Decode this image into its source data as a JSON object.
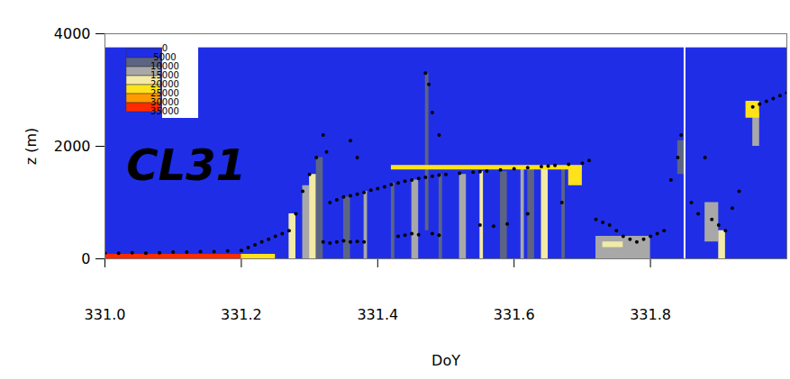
{
  "chart_data": {
    "type": "heatmap",
    "title": "CL31",
    "x_label": "DoY",
    "y_label": "z (m)",
    "xlim": [
      331.0,
      332.0
    ],
    "ylim": [
      0,
      4000
    ],
    "xticks": [
      {
        "value": 331,
        "label": "331.0"
      },
      331.2,
      331.4,
      331.6,
      331.8
    ],
    "yticks": [
      0,
      2000,
      4000
    ],
    "colorbar": {
      "ticks": [
        0,
        5000,
        10000,
        15000,
        20000,
        25000,
        30000,
        35000
      ],
      "colors": [
        "#1f2ee6",
        "#5c6484",
        "#a8a8a8",
        "#f2eaa6",
        "#ffe21a",
        "#ff9a00",
        "#ff2a00"
      ]
    },
    "cells": [
      {
        "t1": 331.0,
        "t2": 332.0,
        "z1": 0,
        "z2": 3750,
        "value": 0
      },
      {
        "t1": 331.0,
        "t2": 331.2,
        "z1": 0,
        "z2": 80,
        "value": 32000
      },
      {
        "t1": 331.2,
        "t2": 331.25,
        "z1": 0,
        "z2": 80,
        "value": 22000
      },
      {
        "t1": 331.27,
        "t2": 331.28,
        "z1": 0,
        "z2": 800,
        "value": 17000
      },
      {
        "t1": 331.29,
        "t2": 331.3,
        "z1": 0,
        "z2": 1300,
        "value": 12000
      },
      {
        "t1": 331.3,
        "t2": 331.31,
        "z1": 0,
        "z2": 1500,
        "value": 17000
      },
      {
        "t1": 331.31,
        "t2": 331.32,
        "z1": 0,
        "z2": 1800,
        "value": 8000
      },
      {
        "t1": 331.35,
        "t2": 331.36,
        "z1": 0,
        "z2": 1100,
        "value": 8000
      },
      {
        "t1": 331.38,
        "t2": 331.385,
        "z1": 0,
        "z2": 1200,
        "value": 12000
      },
      {
        "t1": 331.42,
        "t2": 331.425,
        "z1": 0,
        "z2": 1350,
        "value": 8000
      },
      {
        "t1": 331.45,
        "t2": 331.46,
        "z1": 0,
        "z2": 1400,
        "value": 12000
      },
      {
        "t1": 331.47,
        "t2": 331.475,
        "z1": 500,
        "z2": 3300,
        "value": 8000
      },
      {
        "t1": 331.49,
        "t2": 331.495,
        "z1": 0,
        "z2": 1500,
        "value": 8000
      },
      {
        "t1": 331.52,
        "t2": 331.53,
        "z1": 0,
        "z2": 1500,
        "value": 12000
      },
      {
        "t1": 331.55,
        "t2": 331.555,
        "z1": 0,
        "z2": 1550,
        "value": 17000
      },
      {
        "t1": 331.58,
        "t2": 331.59,
        "z1": 0,
        "z2": 1550,
        "value": 8000
      },
      {
        "t1": 331.61,
        "t2": 331.615,
        "z1": 0,
        "z2": 1600,
        "value": 12000
      },
      {
        "t1": 331.62,
        "t2": 331.63,
        "z1": 0,
        "z2": 1600,
        "value": 8000
      },
      {
        "t1": 331.64,
        "t2": 331.65,
        "z1": 0,
        "z2": 1600,
        "value": 17000
      },
      {
        "t1": 331.67,
        "t2": 331.675,
        "z1": 0,
        "z2": 1650,
        "value": 8000
      },
      {
        "t1": 331.42,
        "t2": 331.7,
        "z1": 1580,
        "z2": 1660,
        "value": 22000
      },
      {
        "t1": 331.68,
        "t2": 331.7,
        "z1": 1300,
        "z2": 1650,
        "value": 22000
      },
      {
        "t1": 331.72,
        "t2": 331.8,
        "z1": 0,
        "z2": 400,
        "value": 12000
      },
      {
        "t1": 331.73,
        "t2": 331.76,
        "z1": 200,
        "z2": 300,
        "value": 17000
      },
      {
        "t1": 331.84,
        "t2": 331.85,
        "z1": 1500,
        "z2": 2100,
        "value": 8000
      },
      {
        "t1": 331.88,
        "t2": 331.9,
        "z1": 300,
        "z2": 1000,
        "value": 12000
      },
      {
        "t1": 331.9,
        "t2": 331.91,
        "z1": 0,
        "z2": 500,
        "value": 17000
      },
      {
        "t1": 331.95,
        "t2": 331.96,
        "z1": 2000,
        "z2": 2600,
        "value": 12000
      },
      {
        "t1": 331.94,
        "t2": 331.96,
        "z1": 2500,
        "z2": 2800,
        "value": 22000
      }
    ],
    "gaps": [
      331.85
    ],
    "points": [
      [
        331.0,
        100
      ],
      [
        331.02,
        100
      ],
      [
        331.04,
        110
      ],
      [
        331.06,
        100
      ],
      [
        331.08,
        110
      ],
      [
        331.1,
        120
      ],
      [
        331.12,
        120
      ],
      [
        331.14,
        130
      ],
      [
        331.16,
        130
      ],
      [
        331.18,
        140
      ],
      [
        331.2,
        150
      ],
      [
        331.21,
        200
      ],
      [
        331.22,
        250
      ],
      [
        331.23,
        300
      ],
      [
        331.24,
        350
      ],
      [
        331.25,
        400
      ],
      [
        331.26,
        450
      ],
      [
        331.27,
        500
      ],
      [
        331.28,
        800
      ],
      [
        331.29,
        1200
      ],
      [
        331.3,
        1500
      ],
      [
        331.31,
        1800
      ],
      [
        331.32,
        2200
      ],
      [
        331.325,
        1900
      ],
      [
        331.33,
        1000
      ],
      [
        331.34,
        1050
      ],
      [
        331.35,
        1100
      ],
      [
        331.36,
        1120
      ],
      [
        331.37,
        1150
      ],
      [
        331.38,
        1180
      ],
      [
        331.39,
        1220
      ],
      [
        331.4,
        1250
      ],
      [
        331.41,
        1280
      ],
      [
        331.42,
        1320
      ],
      [
        331.43,
        1350
      ],
      [
        331.44,
        1380
      ],
      [
        331.45,
        1400
      ],
      [
        331.46,
        1430
      ],
      [
        331.47,
        1450
      ],
      [
        331.48,
        1470
      ],
      [
        331.49,
        1490
      ],
      [
        331.5,
        1500
      ],
      [
        331.52,
        1520
      ],
      [
        331.54,
        1540
      ],
      [
        331.55,
        1550
      ],
      [
        331.56,
        1560
      ],
      [
        331.58,
        1580
      ],
      [
        331.6,
        1600
      ],
      [
        331.62,
        1620
      ],
      [
        331.64,
        1640
      ],
      [
        331.65,
        1650
      ],
      [
        331.66,
        1660
      ],
      [
        331.68,
        1680
      ],
      [
        331.7,
        1700
      ],
      [
        331.71,
        1750
      ],
      [
        331.32,
        300
      ],
      [
        331.33,
        280
      ],
      [
        331.34,
        300
      ],
      [
        331.35,
        320
      ],
      [
        331.36,
        300
      ],
      [
        331.37,
        310
      ],
      [
        331.38,
        300
      ],
      [
        331.43,
        400
      ],
      [
        331.44,
        420
      ],
      [
        331.45,
        450
      ],
      [
        331.46,
        430
      ],
      [
        331.48,
        450
      ],
      [
        331.49,
        420
      ],
      [
        331.55,
        600
      ],
      [
        331.57,
        580
      ],
      [
        331.59,
        620
      ],
      [
        331.62,
        800
      ],
      [
        331.67,
        1000
      ],
      [
        331.36,
        2100
      ],
      [
        331.37,
        1800
      ],
      [
        331.47,
        3300
      ],
      [
        331.475,
        3100
      ],
      [
        331.48,
        2600
      ],
      [
        331.49,
        2200
      ],
      [
        331.72,
        700
      ],
      [
        331.73,
        650
      ],
      [
        331.74,
        600
      ],
      [
        331.75,
        500
      ],
      [
        331.76,
        400
      ],
      [
        331.77,
        350
      ],
      [
        331.78,
        300
      ],
      [
        331.79,
        350
      ],
      [
        331.8,
        400
      ],
      [
        331.81,
        450
      ],
      [
        331.82,
        500
      ],
      [
        331.83,
        1400
      ],
      [
        331.84,
        1800
      ],
      [
        331.845,
        2200
      ],
      [
        331.86,
        1000
      ],
      [
        331.87,
        800
      ],
      [
        331.88,
        1800
      ],
      [
        331.89,
        700
      ],
      [
        331.9,
        600
      ],
      [
        331.91,
        500
      ],
      [
        331.92,
        900
      ],
      [
        331.93,
        1200
      ],
      [
        331.95,
        2700
      ],
      [
        331.96,
        2750
      ],
      [
        331.97,
        2800
      ],
      [
        331.98,
        2850
      ],
      [
        331.99,
        2900
      ],
      [
        332.0,
        2950
      ]
    ]
  }
}
